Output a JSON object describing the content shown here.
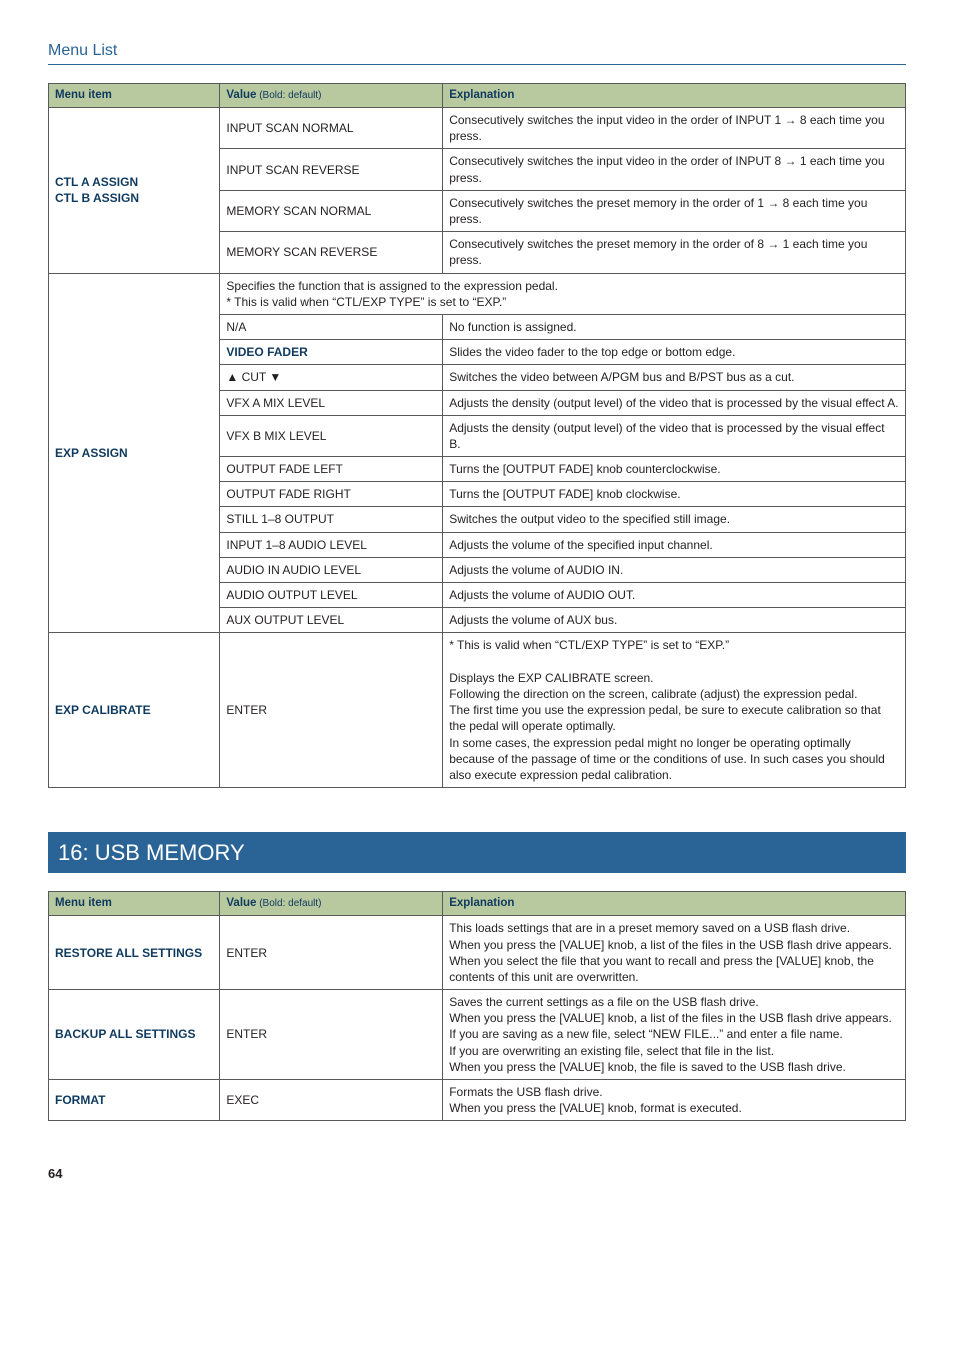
{
  "page": {
    "title": "Menu List",
    "number": "64"
  },
  "table1": {
    "headers": {
      "c1": "Menu item",
      "c2_main": "Value",
      "c2_sub": " (Bold: default)",
      "c3": "Explanation"
    },
    "ctl": {
      "label_a": "CTL A ASSIGN",
      "label_b": "CTL B ASSIGN",
      "rows": [
        {
          "val": "INPUT SCAN NORMAL",
          "exp": "Consecutively switches the input video in the order of INPUT 1 → 8 each time you press."
        },
        {
          "val": "INPUT SCAN REVERSE",
          "exp": "Consecutively switches the input video in the order of INPUT 8 → 1 each time you press."
        },
        {
          "val": "MEMORY SCAN NORMAL",
          "exp": "Consecutively switches the preset memory in the order of 1 → 8 each time you press."
        },
        {
          "val": "MEMORY SCAN REVERSE",
          "exp": "Consecutively switches the preset memory in the order of 8 → 1 each time you press."
        }
      ]
    },
    "exp_assign": {
      "label": "EXP ASSIGN",
      "note_line1": "Specifies the function that is assigned to the expression pedal.",
      "note_line2": "* This is valid when “CTL/EXP TYPE” is set to “EXP.”",
      "rows": [
        {
          "val": "N/A",
          "bold": false,
          "exp": "No function is assigned."
        },
        {
          "val": "VIDEO FADER",
          "bold": true,
          "exp": "Slides the video fader to the top edge or bottom edge."
        },
        {
          "val": "▲ CUT ▼",
          "bold": false,
          "exp": "Switches the video between A/PGM bus and B/PST bus as a cut."
        },
        {
          "val": "VFX A MIX LEVEL",
          "bold": false,
          "exp": "Adjusts the density (output level) of the video that is processed by the visual effect A."
        },
        {
          "val": "VFX B MIX LEVEL",
          "bold": false,
          "exp": "Adjusts the density (output level) of the video that is processed by the visual effect B."
        },
        {
          "val": "OUTPUT FADE LEFT",
          "bold": false,
          "exp": "Turns the [OUTPUT FADE] knob counterclockwise."
        },
        {
          "val": "OUTPUT FADE RIGHT",
          "bold": false,
          "exp": "Turns the [OUTPUT FADE] knob clockwise."
        },
        {
          "val": "STILL 1–8 OUTPUT",
          "bold": false,
          "exp": "Switches the output video to the specified still image."
        },
        {
          "val": "INPUT 1–8 AUDIO LEVEL",
          "bold": false,
          "exp": "Adjusts the volume of the specified input channel."
        },
        {
          "val": "AUDIO IN AUDIO LEVEL",
          "bold": false,
          "exp": "Adjusts the volume of AUDIO IN."
        },
        {
          "val": "AUDIO OUTPUT LEVEL",
          "bold": false,
          "exp": "Adjusts the volume of AUDIO OUT."
        },
        {
          "val": "AUX OUTPUT LEVEL",
          "bold": false,
          "exp": "Adjusts the volume of AUX bus."
        }
      ]
    },
    "exp_calibrate": {
      "label": "EXP CALIBRATE",
      "val": "ENTER",
      "exp_l1": "* This is valid when “CTL/EXP TYPE” is set to “EXP.”",
      "exp_l2": "Displays the EXP CALIBRATE screen.",
      "exp_l3": "Following the direction on the screen, calibrate (adjust) the expression pedal.",
      "exp_l4": "The first time you use the expression pedal, be sure to execute calibration so that the pedal will operate optimally.",
      "exp_l5": "In some cases, the expression pedal might no longer be operating optimally because of the passage of time or the conditions of use. In such cases you should also execute expression pedal calibration."
    }
  },
  "banner": "16: USB MEMORY",
  "table2": {
    "headers": {
      "c1": "Menu item",
      "c2_main": "Value",
      "c2_sub": " (Bold: default)",
      "c3": "Explanation"
    },
    "rows": [
      {
        "label": "RESTORE ALL SETTINGS",
        "val": "ENTER",
        "exp_l1": " This loads settings that are in a preset memory saved on a USB flash drive.",
        "exp_l2": "When you press the [VALUE] knob, a list of the files in the USB flash drive appears.",
        "exp_l3": "When you select the file that you want to recall and press the [VALUE] knob, the contents of this unit are overwritten."
      },
      {
        "label": "BACKUP ALL SETTINGS",
        "val": "ENTER",
        "exp_l1": "Saves the current settings as a file on the USB flash drive.",
        "exp_l2": "When you press the [VALUE] knob, a list of the files in the USB flash drive appears.",
        "exp_l3": "If you are saving as a new file, select “NEW FILE...” and enter a file name.",
        "exp_l4": "If you are overwriting an existing file, select that file in the list.",
        "exp_l5": "When you press the [VALUE] knob, the file is saved to the USB flash drive."
      },
      {
        "label": "FORMAT",
        "val": "EXEC",
        "exp_l1": "Formats the USB flash drive.",
        "exp_l2": "When you press the [VALUE] knob, format is executed."
      }
    ]
  }
}
